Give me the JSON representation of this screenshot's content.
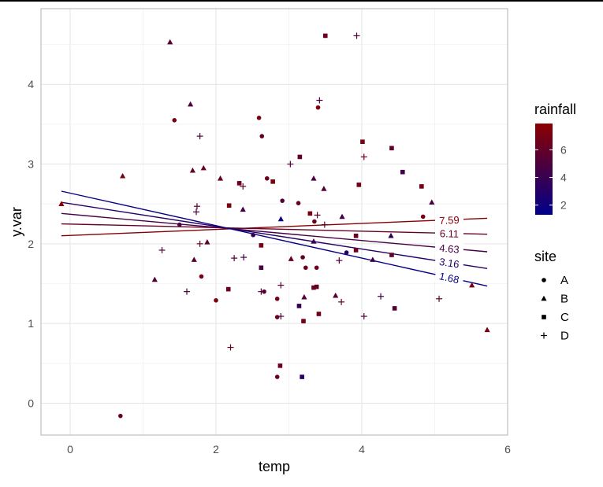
{
  "chart_data": {
    "type": "scatter",
    "xlabel": "temp",
    "ylabel": "y.var",
    "xlim": [
      -0.4,
      6.0
    ],
    "ylim": [
      -0.4,
      4.95
    ],
    "x_ticks": [
      0,
      2,
      4,
      6
    ],
    "y_ticks": [
      0,
      1,
      2,
      3,
      4
    ],
    "grid": true,
    "legend": {
      "placement": "right",
      "color_title": "rainfall",
      "color_ticks": [
        2,
        4,
        6
      ],
      "color_range": [
        1.3,
        7.9
      ],
      "color_low": "#00008b",
      "color_high": "#8b0000",
      "shape_title": "site",
      "shape_entries": [
        "A",
        "B",
        "C",
        "D"
      ]
    },
    "lines": [
      {
        "label": "7.59",
        "rainfall": 7.59,
        "x": [
          -0.12,
          5.72
        ],
        "y": [
          2.1,
          2.32
        ]
      },
      {
        "label": "6.11",
        "rainfall": 6.11,
        "x": [
          -0.12,
          5.72
        ],
        "y": [
          2.25,
          2.12
        ]
      },
      {
        "label": "4.63",
        "rainfall": 4.63,
        "x": [
          -0.12,
          5.72
        ],
        "y": [
          2.38,
          1.9
        ]
      },
      {
        "label": "3.16",
        "rainfall": 3.16,
        "x": [
          -0.12,
          5.72
        ],
        "y": [
          2.52,
          1.69
        ]
      },
      {
        "label": "1.68",
        "rainfall": 1.68,
        "x": [
          -0.12,
          5.72
        ],
        "y": [
          2.66,
          1.47
        ]
      }
    ],
    "points": [
      {
        "site": "A",
        "x": 0.69,
        "y": -0.16,
        "rainfall": 6.2
      },
      {
        "site": "A",
        "x": 1.43,
        "y": 3.55,
        "rainfall": 6.8
      },
      {
        "site": "A",
        "x": 1.5,
        "y": 2.24,
        "rainfall": 5.0
      },
      {
        "site": "A",
        "x": 1.8,
        "y": 1.59,
        "rainfall": 7.0
      },
      {
        "site": "A",
        "x": 2.0,
        "y": 1.29,
        "rainfall": 7.2
      },
      {
        "site": "A",
        "x": 2.51,
        "y": 2.11,
        "rainfall": 3.5
      },
      {
        "site": "A",
        "x": 2.59,
        "y": 3.58,
        "rainfall": 7.1
      },
      {
        "site": "A",
        "x": 2.63,
        "y": 3.35,
        "rainfall": 6.0
      },
      {
        "site": "A",
        "x": 2.66,
        "y": 1.4,
        "rainfall": 5.5
      },
      {
        "site": "A",
        "x": 2.7,
        "y": 2.82,
        "rainfall": 6.5
      },
      {
        "site": "A",
        "x": 2.84,
        "y": 1.31,
        "rainfall": 6.9
      },
      {
        "site": "A",
        "x": 2.84,
        "y": 1.08,
        "rainfall": 6.7
      },
      {
        "site": "A",
        "x": 2.84,
        "y": 0.33,
        "rainfall": 6.3
      },
      {
        "site": "A",
        "x": 2.91,
        "y": 2.54,
        "rainfall": 5.2
      },
      {
        "site": "A",
        "x": 3.13,
        "y": 2.51,
        "rainfall": 6.1
      },
      {
        "site": "A",
        "x": 3.19,
        "y": 1.83,
        "rainfall": 5.8
      },
      {
        "site": "A",
        "x": 3.23,
        "y": 1.7,
        "rainfall": 6.6
      },
      {
        "site": "A",
        "x": 3.35,
        "y": 2.28,
        "rainfall": 6.4
      },
      {
        "site": "A",
        "x": 3.4,
        "y": 3.71,
        "rainfall": 7.4
      },
      {
        "site": "A",
        "x": 3.79,
        "y": 1.89,
        "rainfall": 3.0
      },
      {
        "site": "A",
        "x": 3.38,
        "y": 1.7,
        "rainfall": 6.5
      },
      {
        "site": "A",
        "x": 4.84,
        "y": 2.34,
        "rainfall": 6.9
      },
      {
        "site": "B",
        "x": -0.12,
        "y": 2.5,
        "rainfall": 7.8
      },
      {
        "site": "B",
        "x": 0.72,
        "y": 2.85,
        "rainfall": 7.0
      },
      {
        "site": "B",
        "x": 1.16,
        "y": 1.55,
        "rainfall": 5.0
      },
      {
        "site": "B",
        "x": 1.37,
        "y": 4.53,
        "rainfall": 5.5
      },
      {
        "site": "B",
        "x": 1.65,
        "y": 3.75,
        "rainfall": 5.0
      },
      {
        "site": "B",
        "x": 1.68,
        "y": 2.92,
        "rainfall": 6.0
      },
      {
        "site": "B",
        "x": 1.7,
        "y": 1.8,
        "rainfall": 5.5
      },
      {
        "site": "B",
        "x": 1.83,
        "y": 2.95,
        "rainfall": 6.5
      },
      {
        "site": "B",
        "x": 1.88,
        "y": 2.02,
        "rainfall": 5.8
      },
      {
        "site": "B",
        "x": 2.06,
        "y": 2.82,
        "rainfall": 6.0
      },
      {
        "site": "B",
        "x": 2.37,
        "y": 2.43,
        "rainfall": 4.5
      },
      {
        "site": "B",
        "x": 2.89,
        "y": 2.31,
        "rainfall": 1.8
      },
      {
        "site": "B",
        "x": 3.03,
        "y": 1.81,
        "rainfall": 6.2
      },
      {
        "site": "B",
        "x": 3.21,
        "y": 1.33,
        "rainfall": 5.5
      },
      {
        "site": "B",
        "x": 3.34,
        "y": 2.82,
        "rainfall": 4.8
      },
      {
        "site": "B",
        "x": 3.34,
        "y": 2.03,
        "rainfall": 3.8
      },
      {
        "site": "B",
        "x": 3.48,
        "y": 2.69,
        "rainfall": 5.2
      },
      {
        "site": "B",
        "x": 3.64,
        "y": 1.35,
        "rainfall": 5.5
      },
      {
        "site": "B",
        "x": 3.73,
        "y": 2.34,
        "rainfall": 4.5
      },
      {
        "site": "B",
        "x": 4.15,
        "y": 1.8,
        "rainfall": 4.2
      },
      {
        "site": "B",
        "x": 4.4,
        "y": 2.1,
        "rainfall": 3.5
      },
      {
        "site": "B",
        "x": 4.96,
        "y": 2.52,
        "rainfall": 4.8
      },
      {
        "site": "B",
        "x": 5.51,
        "y": 1.48,
        "rainfall": 6.8
      },
      {
        "site": "B",
        "x": 5.72,
        "y": 0.92,
        "rainfall": 7.0
      },
      {
        "site": "C",
        "x": 2.18,
        "y": 2.48,
        "rainfall": 7.2
      },
      {
        "site": "C",
        "x": 2.17,
        "y": 1.43,
        "rainfall": 6.6
      },
      {
        "site": "C",
        "x": 2.32,
        "y": 2.76,
        "rainfall": 6.5
      },
      {
        "site": "C",
        "x": 2.62,
        "y": 1.98,
        "rainfall": 6.8
      },
      {
        "site": "C",
        "x": 2.62,
        "y": 1.7,
        "rainfall": 4.8
      },
      {
        "site": "C",
        "x": 2.78,
        "y": 2.78,
        "rainfall": 7.3
      },
      {
        "site": "C",
        "x": 2.88,
        "y": 0.47,
        "rainfall": 6.5
      },
      {
        "site": "C",
        "x": 3.14,
        "y": 1.22,
        "rainfall": 3.8
      },
      {
        "site": "C",
        "x": 3.15,
        "y": 3.09,
        "rainfall": 6.0
      },
      {
        "site": "C",
        "x": 3.18,
        "y": 0.33,
        "rainfall": 3.2
      },
      {
        "site": "C",
        "x": 3.2,
        "y": 1.03,
        "rainfall": 6.8
      },
      {
        "site": "C",
        "x": 3.29,
        "y": 2.38,
        "rainfall": 7.1
      },
      {
        "site": "C",
        "x": 3.34,
        "y": 1.45,
        "rainfall": 6.2
      },
      {
        "site": "C",
        "x": 3.38,
        "y": 1.46,
        "rainfall": 6.0
      },
      {
        "site": "C",
        "x": 3.41,
        "y": 1.12,
        "rainfall": 6.7
      },
      {
        "site": "C",
        "x": 3.5,
        "y": 4.61,
        "rainfall": 6.4
      },
      {
        "site": "C",
        "x": 3.92,
        "y": 2.1,
        "rainfall": 6.1
      },
      {
        "site": "C",
        "x": 3.92,
        "y": 1.92,
        "rainfall": 6.6
      },
      {
        "site": "C",
        "x": 3.96,
        "y": 2.74,
        "rainfall": 6.9
      },
      {
        "site": "C",
        "x": 4.01,
        "y": 3.28,
        "rainfall": 7.0
      },
      {
        "site": "C",
        "x": 4.41,
        "y": 3.2,
        "rainfall": 5.8
      },
      {
        "site": "C",
        "x": 4.41,
        "y": 1.86,
        "rainfall": 6.2
      },
      {
        "site": "C",
        "x": 4.45,
        "y": 1.19,
        "rainfall": 5.4
      },
      {
        "site": "C",
        "x": 4.56,
        "y": 2.9,
        "rainfall": 4.5
      },
      {
        "site": "C",
        "x": 4.82,
        "y": 2.72,
        "rainfall": 7.0
      },
      {
        "site": "D",
        "x": 1.26,
        "y": 1.92,
        "rainfall": 5.5
      },
      {
        "site": "D",
        "x": 1.6,
        "y": 1.4,
        "rainfall": 5.0
      },
      {
        "site": "D",
        "x": 1.74,
        "y": 2.47,
        "rainfall": 5.5
      },
      {
        "site": "D",
        "x": 1.73,
        "y": 2.4,
        "rainfall": 5.0
      },
      {
        "site": "D",
        "x": 1.78,
        "y": 3.35,
        "rainfall": 5.2
      },
      {
        "site": "D",
        "x": 1.78,
        "y": 2.0,
        "rainfall": 6.0
      },
      {
        "site": "D",
        "x": 2.2,
        "y": 0.7,
        "rainfall": 6.8
      },
      {
        "site": "D",
        "x": 2.25,
        "y": 1.82,
        "rainfall": 5.0
      },
      {
        "site": "D",
        "x": 2.38,
        "y": 1.83,
        "rainfall": 4.5
      },
      {
        "site": "D",
        "x": 2.37,
        "y": 2.72,
        "rainfall": 5.8
      },
      {
        "site": "D",
        "x": 2.62,
        "y": 1.4,
        "rainfall": 5.2
      },
      {
        "site": "D",
        "x": 2.89,
        "y": 1.48,
        "rainfall": 5.5
      },
      {
        "site": "D",
        "x": 2.89,
        "y": 1.09,
        "rainfall": 5.0
      },
      {
        "site": "D",
        "x": 3.02,
        "y": 3.0,
        "rainfall": 5.0
      },
      {
        "site": "D",
        "x": 3.39,
        "y": 2.36,
        "rainfall": 5.8
      },
      {
        "site": "D",
        "x": 3.42,
        "y": 3.8,
        "rainfall": 5.0
      },
      {
        "site": "D",
        "x": 3.49,
        "y": 2.24,
        "rainfall": 6.2
      },
      {
        "site": "D",
        "x": 3.69,
        "y": 1.79,
        "rainfall": 5.5
      },
      {
        "site": "D",
        "x": 3.72,
        "y": 1.27,
        "rainfall": 5.8
      },
      {
        "site": "D",
        "x": 3.93,
        "y": 4.61,
        "rainfall": 5.0
      },
      {
        "site": "D",
        "x": 4.03,
        "y": 3.09,
        "rainfall": 6.5
      },
      {
        "site": "D",
        "x": 4.03,
        "y": 1.09,
        "rainfall": 5.5
      },
      {
        "site": "D",
        "x": 4.26,
        "y": 1.34,
        "rainfall": 4.5
      },
      {
        "site": "D",
        "x": 5.06,
        "y": 1.31,
        "rainfall": 5.8
      }
    ]
  }
}
